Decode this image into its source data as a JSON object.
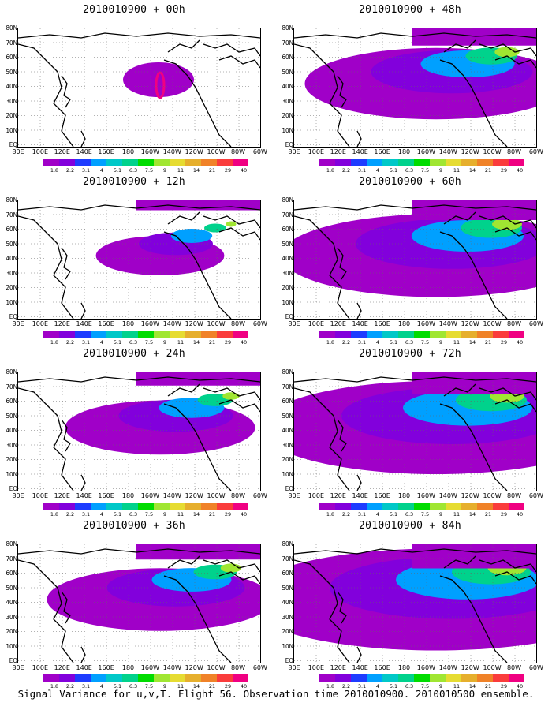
{
  "panels": [
    {
      "title": "2010010900 + 00h"
    },
    {
      "title": "2010010900 + 48h"
    },
    {
      "title": "2010010900 + 12h"
    },
    {
      "title": "2010010900 + 60h"
    },
    {
      "title": "2010010900 + 24h"
    },
    {
      "title": "2010010900 + 72h"
    },
    {
      "title": "2010010900 + 36h"
    },
    {
      "title": "2010010900 + 84h"
    }
  ],
  "y_labels": [
    "80N",
    "70N",
    "60N",
    "50N",
    "40N",
    "30N",
    "20N",
    "10N",
    "EQ"
  ],
  "x_labels": [
    "80E",
    "100E",
    "120E",
    "140E",
    "160E",
    "180",
    "160W",
    "140W",
    "120W",
    "100W",
    "80W",
    "60W"
  ],
  "colorbar": {
    "labels": [
      "1.8",
      "2.2",
      "3.1",
      "4",
      "5.1",
      "6.3",
      "7.5",
      "9",
      "11",
      "14",
      "21",
      "29",
      "40"
    ],
    "colors": [
      "#a000c8",
      "#8200dc",
      "#1e3cff",
      "#00a0ff",
      "#00c8c8",
      "#00d28c",
      "#00dc00",
      "#a0e632",
      "#e6dc32",
      "#e6af2d",
      "#f08228",
      "#fa3c3c",
      "#f00082"
    ]
  },
  "caption": "Signal Variance for u,v,T. Flight 56. Observation time 2010010900. 2010010500 ensemble."
}
